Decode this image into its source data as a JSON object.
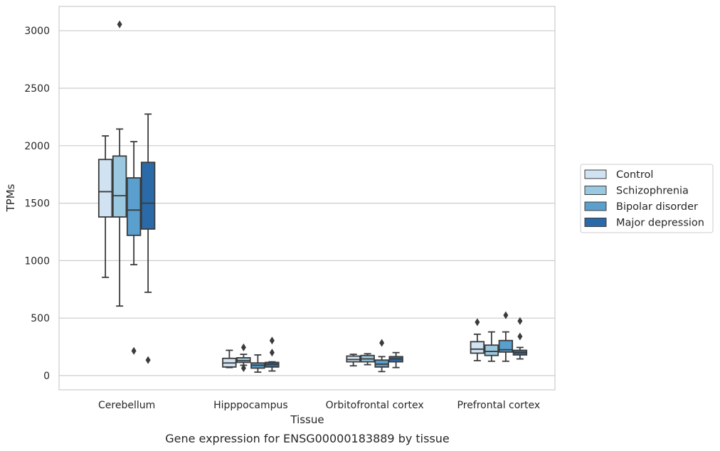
{
  "chart_data": {
    "type": "box",
    "caption": "Gene expression for ENSG00000183889 by tissue",
    "xlabel": "Tissue",
    "ylabel": "TPMs",
    "ylim": [
      -125,
      3215
    ],
    "yticks": [
      0,
      500,
      1000,
      1500,
      2000,
      2500,
      3000
    ],
    "grid": "horizontal",
    "legend_position": "right",
    "categories": [
      "Cerebellum",
      "Hipppocampus",
      "Orbitofrontal cortex",
      "Prefrontal cortex"
    ],
    "series": [
      {
        "name": "Control",
        "color": "#d1e2f2",
        "boxes": [
          {
            "whisker_low": 855,
            "q1": 1380,
            "median": 1600,
            "q3": 1880,
            "whisker_high": 2085,
            "outliers": []
          },
          {
            "whisker_low": 70,
            "q1": 75,
            "median": 110,
            "q3": 150,
            "whisker_high": 220,
            "outliers": []
          },
          {
            "whisker_low": 85,
            "q1": 120,
            "median": 140,
            "q3": 170,
            "whisker_high": 185,
            "outliers": []
          },
          {
            "whisker_low": 130,
            "q1": 195,
            "median": 230,
            "q3": 295,
            "whisker_high": 360,
            "outliers": [
              465
            ]
          }
        ]
      },
      {
        "name": "Schizophrenia",
        "color": "#9ac8e0",
        "boxes": [
          {
            "whisker_low": 605,
            "q1": 1380,
            "median": 1565,
            "q3": 1910,
            "whisker_high": 2145,
            "outliers": [
              3055
            ]
          },
          {
            "whisker_low": 90,
            "q1": 115,
            "median": 130,
            "q3": 155,
            "whisker_high": 185,
            "outliers": [
              65,
              245
            ]
          },
          {
            "whisker_low": 95,
            "q1": 120,
            "median": 145,
            "q3": 175,
            "whisker_high": 190,
            "outliers": []
          },
          {
            "whisker_low": 125,
            "q1": 175,
            "median": 210,
            "q3": 265,
            "whisker_high": 380,
            "outliers": []
          }
        ]
      },
      {
        "name": "Bipolar disorder",
        "color": "#5a9fcd",
        "boxes": [
          {
            "whisker_low": 965,
            "q1": 1220,
            "median": 1440,
            "q3": 1720,
            "whisker_high": 2035,
            "outliers": [
              215
            ]
          },
          {
            "whisker_low": 30,
            "q1": 65,
            "median": 90,
            "q3": 110,
            "whisker_high": 180,
            "outliers": []
          },
          {
            "whisker_low": 35,
            "q1": 75,
            "median": 100,
            "q3": 135,
            "whisker_high": 165,
            "outliers": [
              285
            ]
          },
          {
            "whisker_low": 125,
            "q1": 205,
            "median": 225,
            "q3": 305,
            "whisker_high": 380,
            "outliers": [
              525
            ]
          }
        ]
      },
      {
        "name": "Major depression",
        "color": "#2b6aa8",
        "boxes": [
          {
            "whisker_low": 725,
            "q1": 1275,
            "median": 1500,
            "q3": 1855,
            "whisker_high": 2275,
            "outliers": [
              135
            ]
          },
          {
            "whisker_low": 40,
            "q1": 75,
            "median": 100,
            "q3": 115,
            "whisker_high": 120,
            "outliers": [
              200,
              305
            ]
          },
          {
            "whisker_low": 70,
            "q1": 120,
            "median": 145,
            "q3": 165,
            "whisker_high": 200,
            "outliers": []
          },
          {
            "whisker_low": 145,
            "q1": 180,
            "median": 200,
            "q3": 220,
            "whisker_high": 245,
            "outliers": [
              340,
              475
            ]
          }
        ]
      }
    ]
  }
}
